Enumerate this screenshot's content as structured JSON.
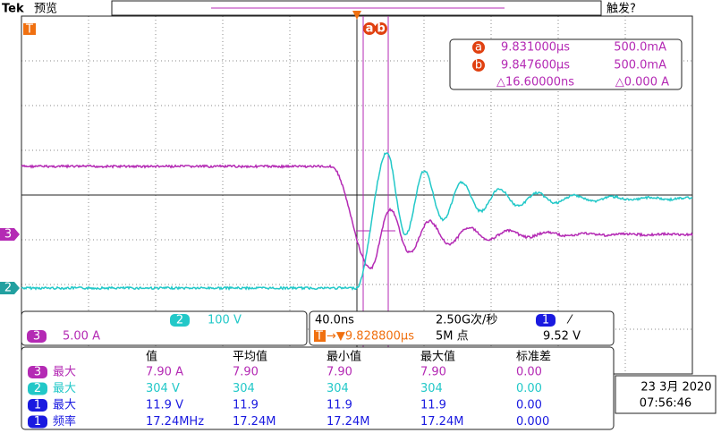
{
  "header": {
    "brand": "Tek",
    "mode": "预览",
    "trigger_status": "触发?"
  },
  "markers": {
    "trigger": "T",
    "cursor_a": "a",
    "cursor_b": "b",
    "channel_3": "3",
    "channel_2": "2"
  },
  "cursor_readout": {
    "a": {
      "label": "a",
      "time": "9.831000µs",
      "value": "500.0mA"
    },
    "b": {
      "label": "b",
      "time": "9.847600µs",
      "value": "500.0mA"
    },
    "delta": {
      "time": "△16.60000ns",
      "value": "△0.000 A"
    }
  },
  "channels": {
    "ch2": {
      "number": "2",
      "scale": "100 V"
    },
    "ch3": {
      "number": "3",
      "scale": "5.00 A"
    }
  },
  "horizontal": {
    "timebase": "40.0ns",
    "sample_rate": "2.50G次/秒",
    "trigger_icon": "T",
    "trigger_position": "→▼9.828800µs",
    "record_length": "5M 点"
  },
  "trigger": {
    "source": "1",
    "slope": "⁄",
    "level": "9.52 V"
  },
  "measurements": {
    "header": [
      "值",
      "平均值",
      "最小值",
      "最大值",
      "标准差"
    ],
    "rows": [
      {
        "channel": "3",
        "name": "最大",
        "values": [
          "7.90 A",
          "7.90",
          "7.90",
          "7.90",
          "0.00"
        ]
      },
      {
        "channel": "2",
        "name": "最大",
        "values": [
          "304 V",
          "304",
          "304",
          "304",
          "0.00"
        ]
      },
      {
        "channel": "1",
        "name": "最大",
        "values": [
          "11.9 V",
          "11.9",
          "11.9",
          "11.9",
          "0.00"
        ]
      },
      {
        "channel": "1",
        "name": "频率",
        "values": [
          "17.24MHz",
          "17.24M",
          "17.24M",
          "17.24M",
          "0.000"
        ]
      }
    ]
  },
  "clock": {
    "date": "23 3月 2020",
    "time": "07:56:46"
  }
}
